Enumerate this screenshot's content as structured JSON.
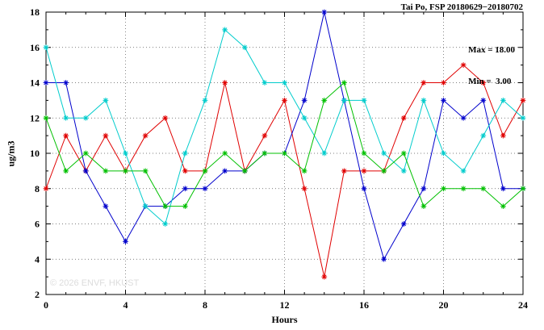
{
  "title": "Tai Po, FSP 20180629−20180702",
  "annotation": {
    "max_label": "Max = 18.00",
    "min_label": "Min =  3.00"
  },
  "watermark": "© 2026 ENVF, HKUST",
  "chart_data": {
    "type": "line",
    "title": "Tai Po, FSP 20180629−20180702",
    "xlabel": "Hours",
    "ylabel": "ug/m3",
    "xlim": [
      0,
      24
    ],
    "ylim": [
      2,
      18
    ],
    "x_major_ticks": [
      0,
      4,
      8,
      12,
      16,
      20,
      24
    ],
    "y_major_ticks": [
      2,
      4,
      6,
      8,
      10,
      12,
      14,
      16,
      18
    ],
    "x_minor_step": 1,
    "y_minor_step": 1,
    "grid": true,
    "legend": "none",
    "marker": "asterisk",
    "x": [
      0,
      1,
      2,
      3,
      4,
      5,
      6,
      7,
      8,
      9,
      10,
      11,
      12,
      13,
      14,
      15,
      16,
      17,
      18,
      19,
      20,
      21,
      22,
      23,
      24
    ],
    "series": [
      {
        "name": "series-red",
        "color": "#e00000",
        "values": [
          8,
          11,
          9,
          11,
          9,
          11,
          12,
          9,
          9,
          14,
          9,
          11,
          13,
          8,
          3,
          9,
          9,
          9,
          12,
          14,
          14,
          15,
          14,
          11,
          13
        ]
      },
      {
        "name": "series-blue",
        "color": "#0000cc",
        "values": [
          14,
          14,
          9,
          7,
          5,
          7,
          7,
          8,
          8,
          9,
          9,
          10,
          10,
          13,
          18,
          13,
          8,
          4,
          6,
          8,
          13,
          12,
          13,
          8,
          8
        ]
      },
      {
        "name": "series-cyan",
        "color": "#00cccc",
        "values": [
          16,
          12,
          12,
          13,
          10,
          7,
          6,
          10,
          13,
          17,
          16,
          14,
          14,
          12,
          10,
          13,
          13,
          10,
          9,
          13,
          10,
          9,
          11,
          13,
          12
        ]
      },
      {
        "name": "series-green",
        "color": "#00c000",
        "values": [
          12,
          9,
          10,
          9,
          9,
          9,
          7,
          7,
          9,
          10,
          9,
          10,
          10,
          9,
          13,
          14,
          10,
          9,
          10,
          7,
          8,
          8,
          8,
          7,
          8
        ]
      }
    ],
    "max": 18.0,
    "min": 3.0
  }
}
